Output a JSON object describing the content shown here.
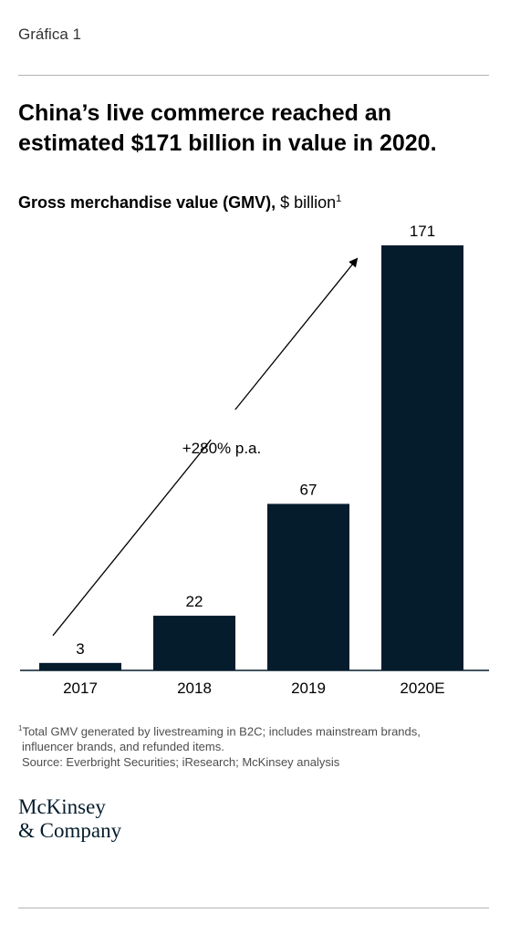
{
  "exhibit_label": "Gráfica 1",
  "title": "China’s live commerce reached an estimated $171 billion in value in 2020.",
  "subtitle": {
    "metric": "Gross merchandise value (GMV),",
    "unit": " $ billion",
    "footnote_mark": "1"
  },
  "chart_data": {
    "type": "bar",
    "categories": [
      "2017",
      "2018",
      "2019",
      "2020E"
    ],
    "values": [
      3,
      22,
      67,
      171
    ],
    "data_labels": [
      "3",
      "22",
      "67",
      "171"
    ],
    "title": "China’s live commerce reached an estimated $171 billion in value in 2020.",
    "ylabel": "Gross merchandise value (GMV), $ billion",
    "xlabel": "",
    "ylim": [
      0,
      171
    ],
    "grid": false,
    "legend": "none",
    "annotation": "+280% p.a.",
    "bar_color": "#051c2c",
    "axis_color": "#051c2c"
  },
  "footnotes": {
    "mark": "1",
    "line1": "Total GMV generated by livestreaming in B2C; includes mainstream brands,",
    "line2": "influencer brands, and refunded items.",
    "source": "Source: Everbright Securities; iResearch; McKinsey analysis"
  },
  "logo": {
    "line1": "McKinsey",
    "line2": "& Company"
  }
}
